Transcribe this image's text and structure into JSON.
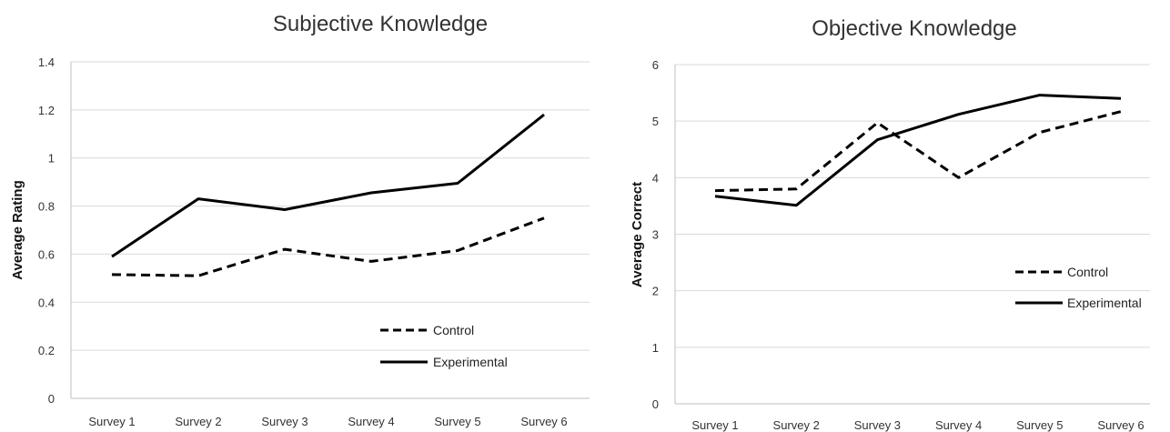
{
  "chart_data": [
    {
      "type": "line",
      "title": "Subjective Knowledge",
      "xlabel": "",
      "ylabel": "Average Rating",
      "categories": [
        "Survey 1",
        "Survey 2",
        "Survey 3",
        "Survey 4",
        "Survey 5",
        "Survey 6"
      ],
      "ylim": [
        0,
        1.4
      ],
      "yticks": [
        "0",
        "0.2",
        "0.4",
        "0.6",
        "0.8",
        "1",
        "1.2",
        "1.4"
      ],
      "grid": true,
      "legend_position": "bottom-right",
      "series": [
        {
          "name": "Control",
          "style": "dashed",
          "color": "#000000",
          "values": [
            0.515,
            0.51,
            0.62,
            0.57,
            0.615,
            0.75
          ]
        },
        {
          "name": "Experimental",
          "style": "solid",
          "color": "#000000",
          "values": [
            0.59,
            0.83,
            0.785,
            0.855,
            0.895,
            1.18
          ]
        }
      ]
    },
    {
      "type": "line",
      "title": "Objective Knowledge",
      "xlabel": "",
      "ylabel": "Average Correct",
      "categories": [
        "Survey 1",
        "Survey 2",
        "Survey 3",
        "Survey 4",
        "Survey 5",
        "Survey 6"
      ],
      "ylim": [
        0,
        6
      ],
      "yticks": [
        "0",
        "1",
        "2",
        "3",
        "4",
        "5",
        "6"
      ],
      "grid": true,
      "legend_position": "right",
      "series": [
        {
          "name": "Control",
          "style": "dashed",
          "color": "#000000",
          "values": [
            3.77,
            3.8,
            4.97,
            4.0,
            4.8,
            5.17
          ]
        },
        {
          "name": "Experimental",
          "style": "solid",
          "color": "#000000",
          "values": [
            3.67,
            3.51,
            4.67,
            5.12,
            5.46,
            5.4
          ]
        }
      ]
    }
  ]
}
